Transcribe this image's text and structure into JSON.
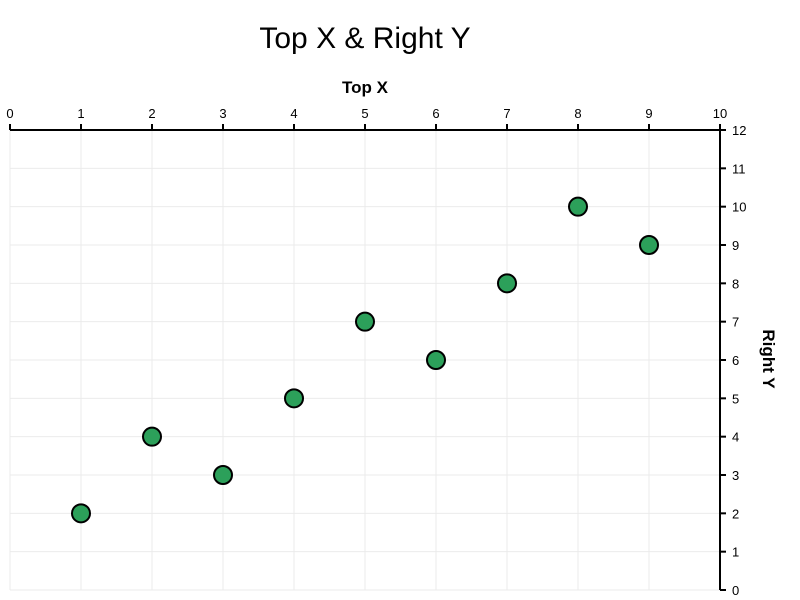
{
  "chart_data": {
    "type": "scatter",
    "title": "Top X & Right Y",
    "xlabel": "Top X",
    "ylabel": "Right Y",
    "x_axis_position": "top",
    "y_axis_position": "right",
    "xlim": [
      0,
      10
    ],
    "ylim": [
      0,
      12
    ],
    "xticks": [
      "0",
      "1",
      "2",
      "3",
      "4",
      "5",
      "6",
      "7",
      "8",
      "9",
      "10"
    ],
    "yticks": [
      "0",
      "1",
      "2",
      "3",
      "4",
      "5",
      "6",
      "7",
      "8",
      "9",
      "10",
      "11",
      "12"
    ],
    "grid": true,
    "legend": false,
    "point_color": "#2ca05a",
    "points": [
      {
        "x": 1,
        "y": 2
      },
      {
        "x": 2,
        "y": 4
      },
      {
        "x": 3,
        "y": 3
      },
      {
        "x": 4,
        "y": 5
      },
      {
        "x": 5,
        "y": 7
      },
      {
        "x": 6,
        "y": 6
      },
      {
        "x": 7,
        "y": 8
      },
      {
        "x": 8,
        "y": 10
      },
      {
        "x": 9,
        "y": 9
      }
    ]
  }
}
